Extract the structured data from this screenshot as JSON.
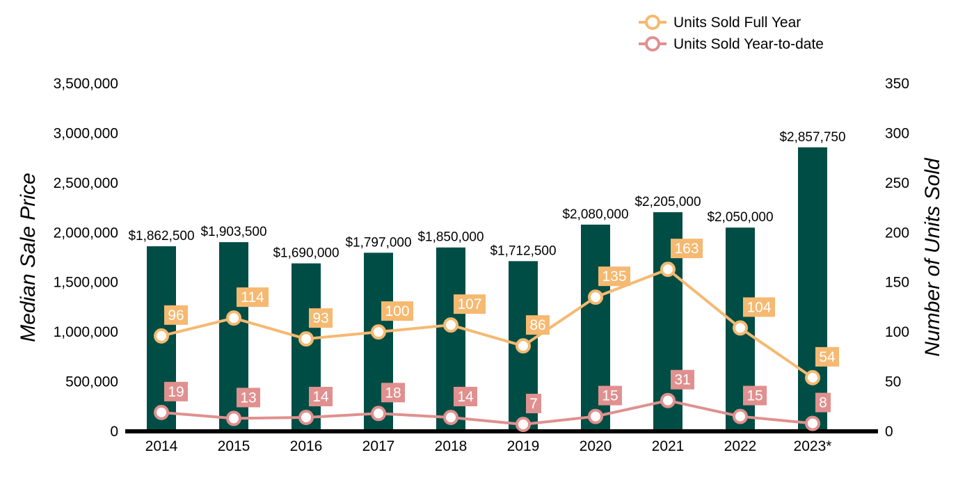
{
  "chart_data": {
    "type": "bar",
    "categories": [
      "2014",
      "2015",
      "2016",
      "2017",
      "2018",
      "2019",
      "2020",
      "2021",
      "2022",
      "2023*"
    ],
    "bar_series": {
      "name": "",
      "values": [
        1862500,
        1903500,
        1690000,
        1797000,
        1850000,
        1712500,
        2080000,
        2205000,
        2050000,
        2857750
      ],
      "labels": [
        "$1,862,500",
        "$1,903,500",
        "$1,690,000",
        "$1,797,000",
        "$1,850,000",
        "$1,712,500",
        "$2,080,000",
        "$2,205,000",
        "$2,050,000",
        "$2,857,750"
      ],
      "color": "#004d45"
    },
    "line_series": [
      {
        "name": "Units Sold Full Year",
        "values": [
          96,
          114,
          93,
          100,
          107,
          86,
          135,
          163,
          104,
          54
        ],
        "color": "#f5b971"
      },
      {
        "name": "Units Sold Year-to-date",
        "values": [
          19,
          13,
          14,
          18,
          14,
          7,
          15,
          31,
          15,
          8
        ],
        "color": "#e0908f"
      }
    ],
    "ylabel": "Median Sale Price",
    "y2label": "Number of Units Sold",
    "ylim": [
      0,
      3500000
    ],
    "y2lim": [
      0,
      350
    ],
    "yticks": [
      0,
      500000,
      1000000,
      1500000,
      2000000,
      2500000,
      3000000,
      3500000
    ],
    "yticklabels": [
      "0",
      "500,000",
      "1,000,000",
      "1,500,000",
      "2,000,000",
      "2,500,000",
      "3,000,000",
      "3,500,000"
    ],
    "y2ticks": [
      0,
      50,
      100,
      150,
      200,
      250,
      300,
      350
    ],
    "y2ticklabels": [
      "0",
      "50",
      "100",
      "150",
      "200",
      "250",
      "300",
      "350"
    ],
    "legend_position": "top-right",
    "grid": false
  }
}
